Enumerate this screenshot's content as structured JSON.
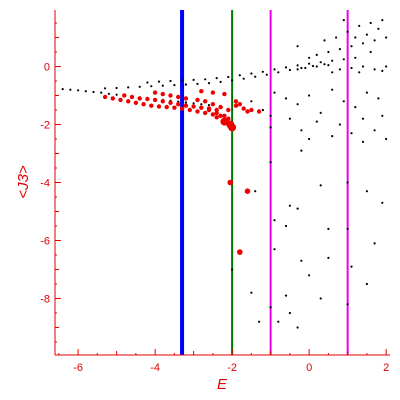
{
  "chart_data": {
    "type": "scatter",
    "xlabel": "E",
    "ylabel": "<J3>",
    "xlim": [
      -6.6,
      2.1
    ],
    "ylim": [
      -9.95,
      1.95
    ],
    "x_ticks": [
      -6,
      -4,
      -2,
      0,
      2
    ],
    "x_tick_labels": [
      "-6",
      "-4",
      "-2",
      "0",
      "2"
    ],
    "y_ticks": [
      0,
      -2,
      -4,
      -6,
      -8
    ],
    "y_tick_labels": [
      "0",
      "-2",
      "-4",
      "-6",
      "-8"
    ],
    "grid": false,
    "axis_color": "#e00000",
    "vertical_lines": [
      {
        "x": -3.3,
        "color": "#0000ff"
      },
      {
        "x": -2.0,
        "color": "#007700"
      },
      {
        "x": -1.0,
        "color": "#ee00ee"
      },
      {
        "x": 1.0,
        "color": "#ee00ee"
      }
    ],
    "series": [
      {
        "color": "#000000",
        "points": [
          [
            -6.4,
            -0.78
          ],
          [
            -6.2,
            -0.8
          ],
          [
            -6.0,
            -0.82
          ],
          [
            -5.8,
            -0.85
          ],
          [
            -5.6,
            -0.88
          ],
          [
            -5.4,
            -0.9
          ],
          [
            -5.2,
            -0.94
          ],
          [
            -5.0,
            -0.97
          ],
          [
            -4.8,
            -1.0
          ],
          [
            -4.6,
            -1.03
          ],
          [
            -4.4,
            -1.06
          ],
          [
            -4.2,
            -1.09
          ],
          [
            -4.0,
            -1.12
          ],
          [
            -3.8,
            -1.15
          ],
          [
            -3.6,
            -1.18
          ],
          [
            -3.4,
            -1.21
          ],
          [
            -3.2,
            -1.24
          ],
          [
            -3.0,
            -1.27
          ],
          [
            -2.8,
            -1.3
          ],
          [
            -2.6,
            -1.33
          ],
          [
            -5.3,
            -0.75
          ],
          [
            -5.0,
            -0.74
          ],
          [
            -4.7,
            -0.72
          ],
          [
            -4.4,
            -0.7
          ],
          [
            -4.1,
            -0.68
          ],
          [
            -3.8,
            -0.66
          ],
          [
            -3.5,
            -0.64
          ],
          [
            -3.2,
            -0.62
          ],
          [
            -2.9,
            -0.6
          ],
          [
            -2.6,
            -0.57
          ],
          [
            -2.3,
            -0.53
          ],
          [
            -2.0,
            -0.48
          ],
          [
            -1.7,
            -0.42
          ],
          [
            -1.4,
            -0.35
          ],
          [
            -1.1,
            -0.28
          ],
          [
            -0.8,
            -0.2
          ],
          [
            -0.5,
            -0.12
          ],
          [
            -0.2,
            -0.05
          ],
          [
            0.1,
            0.02
          ],
          [
            0.4,
            0.08
          ],
          [
            -4.2,
            -0.55
          ],
          [
            -3.9,
            -0.52
          ],
          [
            -3.6,
            -0.5
          ],
          [
            -3.3,
            -0.48
          ],
          [
            -3.0,
            -0.46
          ],
          [
            -2.7,
            -0.44
          ],
          [
            -2.4,
            -0.4
          ],
          [
            -2.1,
            -0.36
          ],
          [
            -1.8,
            -0.3
          ],
          [
            -1.5,
            -0.24
          ],
          [
            -1.2,
            -0.18
          ],
          [
            -0.9,
            -0.1
          ],
          [
            -0.6,
            -0.03
          ],
          [
            -0.3,
            0.04
          ],
          [
            0.0,
            0.1
          ],
          [
            0.3,
            0.15
          ],
          [
            0.6,
            0.2
          ],
          [
            0.9,
            0.25
          ],
          [
            1.2,
            0.3
          ],
          [
            -0.3,
            -0.1
          ],
          [
            -0.1,
            -0.05
          ],
          [
            0.2,
            0.0
          ],
          [
            0.5,
            0.05
          ],
          [
            0.8,
            -0.1
          ],
          [
            1.1,
            -0.05
          ],
          [
            1.4,
            0.0
          ],
          [
            1.7,
            -0.1
          ],
          [
            2.0,
            0.0
          ],
          [
            0.6,
            -0.2
          ],
          [
            1.3,
            -0.2
          ],
          [
            1.9,
            -0.15
          ],
          [
            0.2,
            0.4
          ],
          [
            0.5,
            0.5
          ],
          [
            0.8,
            0.6
          ],
          [
            1.1,
            0.7
          ],
          [
            1.4,
            0.8
          ],
          [
            1.7,
            0.9
          ],
          [
            2.0,
            1.0
          ],
          [
            1.0,
            1.2
          ],
          [
            1.3,
            1.4
          ],
          [
            1.6,
            1.5
          ],
          [
            1.9,
            1.6
          ],
          [
            0.4,
            0.9
          ],
          [
            0.7,
            1.0
          ],
          [
            1.5,
            1.1
          ],
          [
            1.8,
            1.3
          ],
          [
            -0.3,
            0.7
          ],
          [
            0.9,
            1.6
          ],
          [
            0.0,
            0.3
          ],
          [
            1.2,
            1.0
          ],
          [
            1.6,
            0.5
          ],
          [
            -1.5,
            -1.2
          ],
          [
            -1.2,
            -1.5
          ],
          [
            -0.9,
            -0.9
          ],
          [
            -0.6,
            -1.1
          ],
          [
            -0.3,
            -1.3
          ],
          [
            0.0,
            -1.0
          ],
          [
            0.3,
            -1.6
          ],
          [
            0.6,
            -0.8
          ],
          [
            0.9,
            -1.2
          ],
          [
            1.2,
            -1.4
          ],
          [
            1.5,
            -0.9
          ],
          [
            1.8,
            -1.1
          ],
          [
            -1.0,
            -1.7
          ],
          [
            0.2,
            -1.9
          ],
          [
            0.8,
            -2.0
          ],
          [
            1.4,
            -1.8
          ],
          [
            -0.5,
            -1.8
          ],
          [
            1.9,
            -1.7
          ],
          [
            -0.2,
            -2.2
          ],
          [
            0.6,
            -2.4
          ],
          [
            1.1,
            -2.3
          ],
          [
            1.7,
            -2.2
          ],
          [
            -1.0,
            -2.1
          ],
          [
            0.0,
            -2.5
          ],
          [
            1.4,
            -2.6
          ],
          [
            2.0,
            -2.5
          ],
          [
            -1.0,
            -3.3
          ],
          [
            -0.2,
            -2.9
          ],
          [
            -0.9,
            -5.3
          ],
          [
            -0.6,
            -5.5
          ],
          [
            -1.4,
            -4.3
          ],
          [
            -0.5,
            -4.8
          ],
          [
            -0.3,
            -4.9
          ],
          [
            0.3,
            -4.1
          ],
          [
            1.0,
            -4.0
          ],
          [
            1.5,
            -4.3
          ],
          [
            1.9,
            -4.7
          ],
          [
            0.5,
            -5.6
          ],
          [
            1.0,
            -5.6
          ],
          [
            1.7,
            -6.1
          ],
          [
            -0.9,
            -6.3
          ],
          [
            -0.2,
            -6.7
          ],
          [
            0.5,
            -6.6
          ],
          [
            1.1,
            -6.9
          ],
          [
            -2.0,
            -7.0
          ],
          [
            -1.5,
            -7.8
          ],
          [
            -0.6,
            -7.9
          ],
          [
            0.3,
            -8.0
          ],
          [
            -1.0,
            -8.3
          ],
          [
            -0.5,
            -8.5
          ],
          [
            0.0,
            -7.2
          ],
          [
            1.5,
            -7.5
          ],
          [
            -1.3,
            -8.8
          ],
          [
            -0.8,
            -8.8
          ],
          [
            -0.3,
            -9.0
          ],
          [
            1.0,
            -8.2
          ]
        ]
      },
      {
        "color": "#ee0000",
        "points": [
          [
            -5.3,
            -1.05
          ],
          [
            -5.1,
            -1.1
          ],
          [
            -4.9,
            -1.15
          ],
          [
            -4.7,
            -1.2
          ],
          [
            -4.5,
            -1.25
          ],
          [
            -4.3,
            -1.3
          ],
          [
            -4.1,
            -1.35
          ],
          [
            -3.9,
            -1.38
          ],
          [
            -3.7,
            -1.4
          ],
          [
            -3.5,
            -1.42
          ],
          [
            -3.3,
            -1.45
          ],
          [
            -3.1,
            -1.5
          ],
          [
            -2.9,
            -1.55
          ],
          [
            -2.7,
            -1.6
          ],
          [
            -2.5,
            -1.65
          ],
          [
            -2.3,
            -1.7
          ],
          [
            -4.8,
            -1.0
          ],
          [
            -4.6,
            -1.05
          ],
          [
            -4.4,
            -1.1
          ],
          [
            -4.2,
            -1.12
          ],
          [
            -4.0,
            -1.15
          ],
          [
            -3.8,
            -1.2
          ],
          [
            -3.6,
            -1.25
          ],
          [
            -3.4,
            -1.3
          ],
          [
            -3.2,
            -1.35
          ],
          [
            -3.0,
            -1.38
          ],
          [
            -2.8,
            -1.42
          ],
          [
            -2.6,
            -1.45
          ],
          [
            -2.4,
            -1.5
          ],
          [
            -4.0,
            -0.9
          ],
          [
            -3.8,
            -0.95
          ],
          [
            -3.6,
            -1.0
          ],
          [
            -3.4,
            -1.05
          ],
          [
            -3.2,
            -1.1
          ],
          [
            -2.9,
            -1.15
          ],
          [
            -2.7,
            -1.2
          ],
          [
            -2.5,
            -1.3
          ],
          [
            -2.3,
            -1.4
          ],
          [
            -2.1,
            -1.5
          ],
          [
            -1.9,
            -1.35
          ],
          [
            -1.7,
            -1.45
          ],
          [
            -1.5,
            -1.5
          ],
          [
            -1.3,
            -1.55
          ],
          [
            -2.8,
            -0.85
          ],
          [
            -2.5,
            -0.9
          ],
          [
            -2.2,
            -0.95
          ],
          [
            -2.6,
            -1.5
          ],
          [
            -2.4,
            -1.6
          ],
          [
            -2.2,
            -1.7
          ],
          [
            -2.1,
            -1.8
          ],
          [
            -2.05,
            -2.0
          ],
          [
            -2.0,
            -2.1
          ],
          [
            -2.2,
            -1.9
          ],
          [
            -2.4,
            -1.75
          ],
          [
            -1.9,
            -1.2
          ],
          [
            -1.8,
            -1.3
          ],
          [
            -1.6,
            -1.55
          ],
          [
            -2.05,
            -4.0
          ],
          [
            -1.6,
            -4.3
          ],
          [
            -1.8,
            -6.4
          ]
        ]
      }
    ]
  }
}
